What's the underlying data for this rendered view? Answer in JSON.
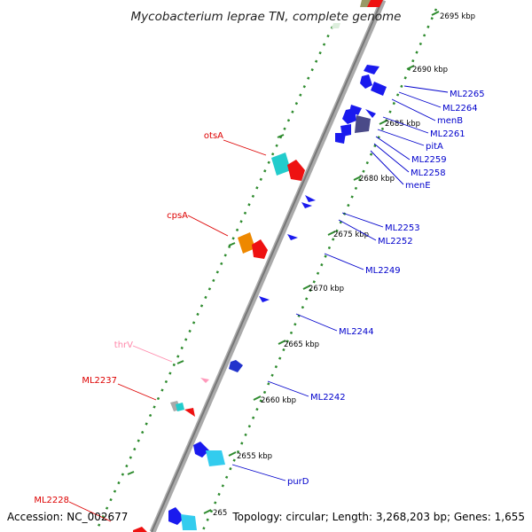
{
  "title": "Mycobacterium leprae TN, complete genome",
  "footer": {
    "accession": "Accession: NC_002677",
    "summary": "Topology: circular; Length: 3,268,203 bp; Genes: 1,655"
  },
  "colors": {
    "backbone": "#999999",
    "tick": "#2e8b2e",
    "forward_label": "#dd0000",
    "reverse_label": "#0000cc",
    "trna_label": "#ff88aa"
  },
  "ticks": [
    "2695 kbp",
    "2690 kbp",
    "2685 kbp",
    "2680 kbp",
    "2675 kbp",
    "2670 kbp",
    "2665 kbp",
    "2660 kbp",
    "2655 kbp",
    "265"
  ],
  "forward_genes": [
    "otsA",
    "cpsA",
    "thrV",
    "ML2237",
    "ML2228"
  ],
  "reverse_genes": [
    "ML2265",
    "ML2264",
    "menB",
    "ML2261",
    "pitA",
    "ML2259",
    "ML2258",
    "menE",
    "ML2253",
    "ML2252",
    "ML2249",
    "ML2244",
    "ML2242",
    "purD"
  ]
}
